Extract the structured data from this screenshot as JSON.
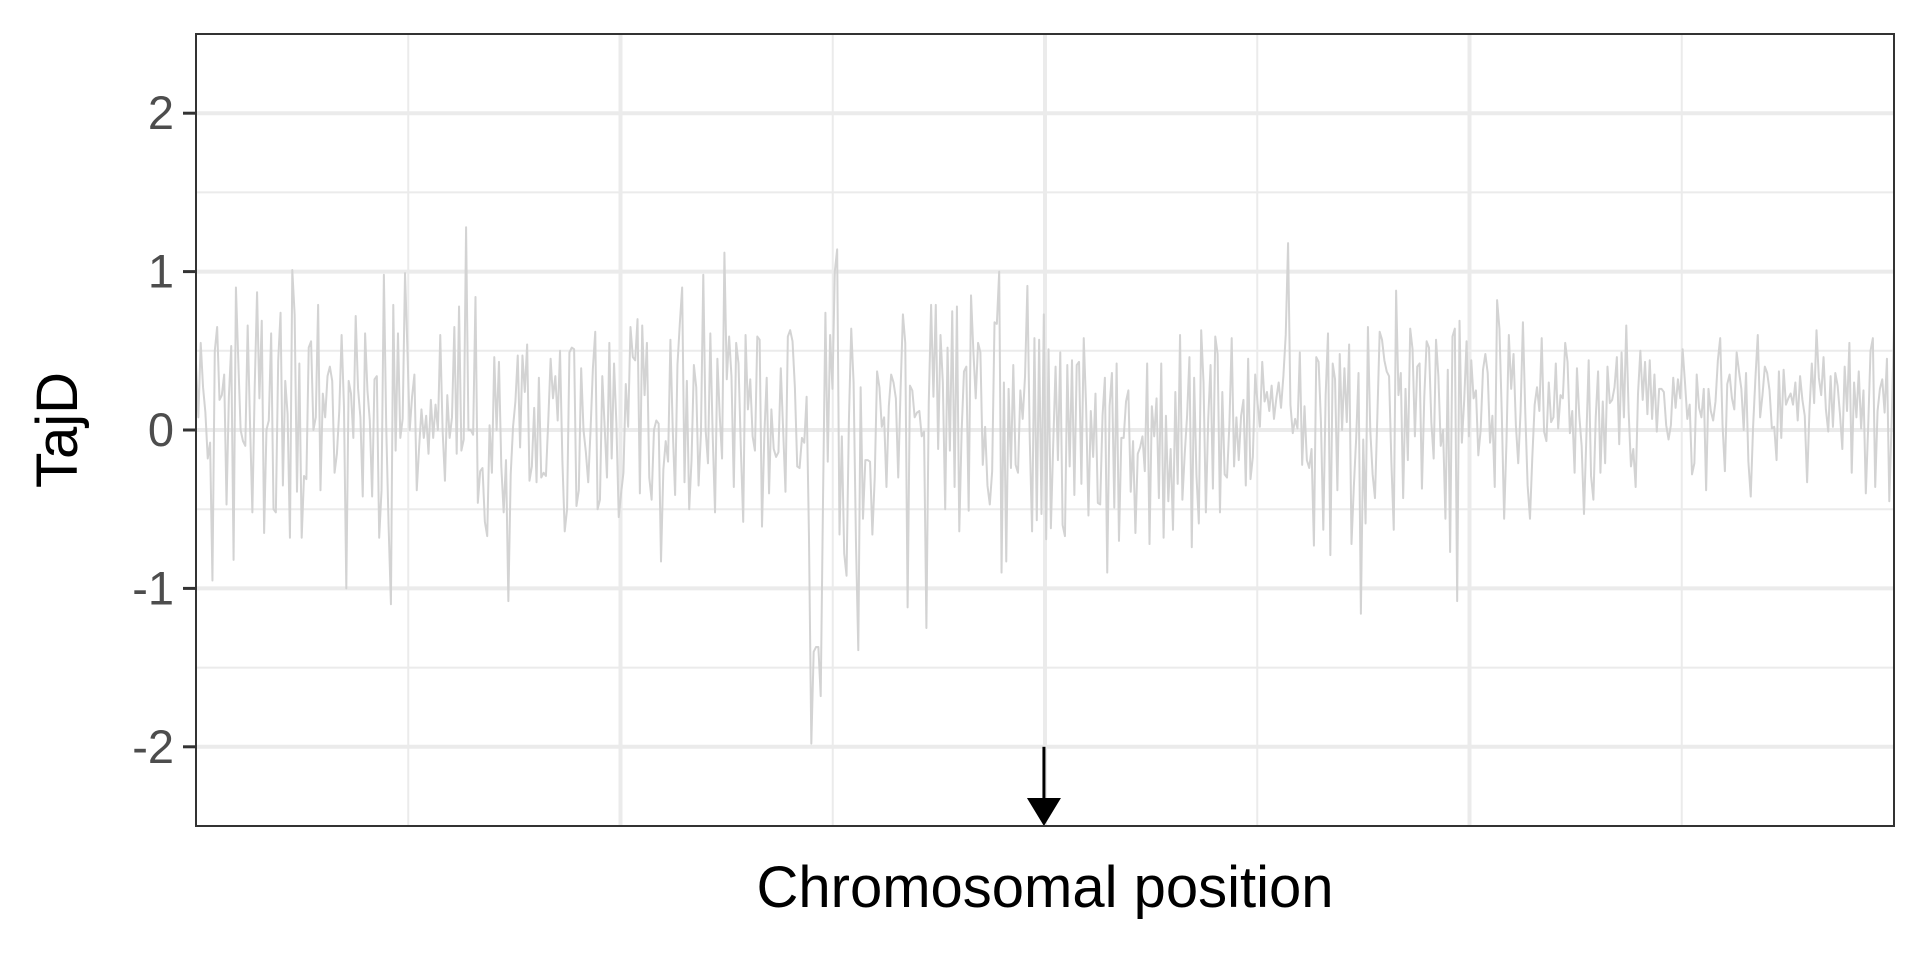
{
  "chart_data": {
    "type": "line",
    "title": "",
    "xlabel": "Chromosomal position",
    "ylabel": "TajD",
    "ylim": [
      -2.5,
      2.5
    ],
    "xlim": [
      1,
      800
    ],
    "yticks": [
      -2,
      -1,
      0,
      1,
      2
    ],
    "ytick_labels": [
      "-2",
      "-1",
      "0",
      "1",
      "2"
    ],
    "grid": true,
    "legend": "none",
    "series_color": "#d3d3d3",
    "background": "#ffffff",
    "grid_color": "#ebebeb",
    "panel_border_color": "#333333",
    "annotation": {
      "type": "arrow",
      "x": 400,
      "y_from": -2,
      "y_to": -2.5,
      "color": "#000000"
    },
    "series": [
      {
        "values": [
          0.42,
          0.08,
          0.55,
          0.27,
          0.11,
          -0.18,
          -0.08,
          -0.95,
          0.5,
          0.65,
          0.19,
          0.22,
          0.35,
          -0.47,
          0.21,
          0.53,
          -0.82,
          0.9,
          0.44,
          0.0,
          -0.07,
          -0.1,
          0.66,
          0.04,
          -0.52,
          0.27,
          0.87,
          0.2,
          0.69,
          -0.65,
          0.0,
          0.06,
          0.61,
          -0.5,
          -0.52,
          0.44,
          0.74,
          -0.35,
          0.31,
          0.1,
          -0.68,
          1.01,
          0.73,
          -0.39,
          0.42,
          -0.68,
          -0.29,
          -0.31,
          0.52,
          0.56,
          0.0,
          0.08,
          0.79,
          -0.38,
          0.23,
          0.08,
          0.34,
          0.4,
          0.31,
          -0.27,
          -0.15,
          0.12,
          0.6,
          0.15,
          -1.0,
          0.31,
          0.23,
          -0.05,
          0.72,
          0.26,
          0.08,
          -0.42,
          0.61,
          0.25,
          0.06,
          -0.42,
          0.32,
          0.34,
          -0.68,
          -0.38,
          0.98,
          0.02,
          -0.6,
          -1.1,
          0.79,
          -0.13,
          0.61,
          -0.05,
          0.07,
          0.99,
          0.52,
          0.0,
          0.21,
          0.35,
          -0.38,
          -0.11,
          0.13,
          -0.05,
          0.09,
          -0.15,
          0.19,
          -0.05,
          0.16,
          0.0,
          0.6,
          0.0,
          -0.32,
          0.22,
          -0.05,
          0.08,
          0.65,
          -0.15,
          0.78,
          -0.13,
          -0.06,
          1.28,
          0.0,
          0.0,
          -0.03,
          0.84,
          -0.46,
          -0.26,
          -0.24,
          -0.58,
          -0.67,
          0.03,
          -0.27,
          0.46,
          0.0,
          0.43,
          -0.23,
          -0.52,
          -0.19,
          -1.08,
          -0.28,
          0.02,
          0.18,
          0.47,
          -0.11,
          0.47,
          0.24,
          0.54,
          -0.32,
          -0.23,
          0.14,
          -0.33,
          0.33,
          -0.3,
          -0.27,
          -0.29,
          0.06,
          0.45,
          0.2,
          0.34,
          0.06,
          0.5,
          -0.19,
          -0.64,
          -0.5,
          0.49,
          0.52,
          0.51,
          -0.48,
          -0.38,
          0.39,
          0.0,
          -0.14,
          -0.33,
          0.0,
          0.39,
          0.62,
          -0.5,
          -0.44,
          0.34,
          0.02,
          -0.3,
          0.55,
          -0.18,
          0.42,
          0.04,
          -0.55,
          -0.4,
          -0.27,
          0.29,
          0.02,
          0.65,
          0.46,
          0.44,
          0.7,
          -0.4,
          0.66,
          0.22,
          0.55,
          -0.3,
          -0.44,
          0.0,
          0.06,
          0.04,
          -0.83,
          -0.25,
          -0.07,
          -0.2,
          0.57,
          0.0,
          -0.41,
          0.41,
          0.67,
          0.9,
          -0.33,
          0.31,
          -0.5,
          -0.19,
          0.41,
          0.27,
          -0.35,
          -0.02,
          0.98,
          0.0,
          -0.21,
          0.61,
          -0.03,
          -0.52,
          0.45,
          0.09,
          -0.18,
          1.12,
          0.32,
          0.59,
          0.34,
          -0.36,
          0.55,
          0.42,
          -0.12,
          -0.58,
          0.6,
          0.13,
          0.32,
          -0.04,
          -0.13,
          0.59,
          0.57,
          -0.61,
          -0.03,
          0.33,
          -0.4,
          0.13,
          -0.12,
          -0.17,
          -0.14,
          0.39,
          0.0,
          -0.39,
          0.59,
          0.63,
          0.56,
          0.27,
          -0.23,
          -0.24,
          -0.05,
          -0.08,
          0.21,
          -0.67,
          -1.98,
          -1.4,
          -1.37,
          -1.37,
          -1.68,
          -0.42,
          0.74,
          -0.2,
          0.6,
          0.26,
          1.0,
          1.14,
          -0.66,
          -0.04,
          -0.78,
          -0.92,
          0.06,
          0.64,
          0.3,
          -0.7,
          -1.39,
          0.27,
          -0.56,
          -0.19,
          -0.19,
          -0.2,
          -0.66,
          -0.3,
          0.37,
          0.27,
          0.02,
          0.08,
          -0.36,
          0.15,
          0.35,
          0.3,
          0.2,
          -0.3,
          0.25,
          0.73,
          0.55,
          -1.12,
          0.28,
          0.25,
          0.08,
          0.11,
          0.12,
          -0.04,
          -0.01,
          -1.25,
          0.17,
          0.79,
          0.21,
          0.79,
          -0.12,
          0.6,
          0.3,
          -0.5,
          0.52,
          -0.13,
          0.75,
          -0.36,
          0.78,
          -0.64,
          -0.01,
          0.37,
          0.4,
          -0.51,
          0.85,
          0.5,
          0.2,
          0.55,
          0.49,
          -0.22,
          0.02,
          -0.35,
          -0.47,
          -0.26,
          0.68,
          0.67,
          1.0,
          -0.9,
          0.3,
          -0.83,
          0.26,
          -0.24,
          0.41,
          -0.22,
          -0.27,
          0.25,
          0.07,
          0.34,
          0.91,
          -0.05,
          -0.64,
          0.58,
          -0.57,
          0.57,
          -0.53,
          0.73,
          -0.69,
          0.51,
          -0.62,
          -0.09,
          0.4,
          -0.19,
          0.49,
          -0.6,
          -0.67,
          0.41,
          -0.23,
          0.44,
          -0.41,
          0.41,
          0.43,
          -0.34,
          0.58,
          0.15,
          -0.54,
          0.12,
          -0.17,
          0.23,
          -0.46,
          -0.47,
          0.09,
          0.33,
          -0.9,
          0.15,
          0.36,
          -0.49,
          0.42,
          -0.7,
          -0.05,
          -0.05,
          0.18,
          0.25,
          -0.39,
          -0.07,
          -0.65,
          -0.15,
          -0.11,
          -0.04,
          -0.26,
          0.42,
          -0.72,
          0.15,
          -0.04,
          0.2,
          -0.43,
          0.42,
          -0.68,
          0.09,
          -0.45,
          -0.12,
          -0.63,
          0.24,
          -0.34,
          0.6,
          -0.44,
          -0.15,
          0.09,
          0.46,
          -0.74,
          0.33,
          -0.29,
          -0.59,
          0.63,
          0.3,
          -0.52,
          0.07,
          0.41,
          -0.37,
          0.59,
          0.48,
          -0.52,
          0.24,
          -0.28,
          -0.3,
          0.03,
          0.58,
          -0.23,
          0.08,
          -0.19,
          0.09,
          0.19,
          -0.35,
          0.45,
          -0.31,
          -0.17,
          0.35,
          0.17,
          0.02,
          0.43,
          0.18,
          0.24,
          0.12,
          0.28,
          0.07,
          0.2,
          0.3,
          0.14,
          0.34,
          0.6,
          1.18,
          0.16,
          -0.02,
          0.07,
          0.01,
          0.49,
          -0.22,
          0.15,
          -0.19,
          -0.24,
          -0.12,
          -0.73,
          0.46,
          0.43,
          0.05,
          -0.63,
          0.22,
          0.61,
          -0.79,
          0.42,
          0.32,
          -0.38,
          0.48,
          0.0,
          0.39,
          0.05,
          0.54,
          -0.72,
          -0.36,
          -0.05,
          0.36,
          -1.16,
          -0.06,
          -0.59,
          0.65,
          0.0,
          -0.28,
          -0.43,
          0.08,
          0.62,
          0.57,
          0.44,
          0.37,
          0.34,
          -0.21,
          -0.63,
          0.88,
          0.22,
          0.36,
          -0.43,
          0.26,
          -0.19,
          0.64,
          0.51,
          -0.04,
          0.4,
          0.42,
          -0.37,
          0.21,
          0.56,
          0.52,
          0.05,
          -0.18,
          0.57,
          0.34,
          -0.1,
          0.0,
          -0.56,
          0.38,
          -0.77,
          0.59,
          0.64,
          -1.08,
          0.69,
          -0.08,
          0.19,
          0.56,
          -0.04,
          0.44,
          0.2,
          0.25,
          -0.16,
          0.0,
          0.38,
          0.48,
          0.36,
          -0.08,
          0.09,
          -0.36,
          0.82,
          0.64,
          0.1,
          -0.56,
          -0.07,
          0.6,
          0.26,
          0.48,
          0.03,
          -0.21,
          0.12,
          0.68,
          0.11,
          -0.35,
          -0.56,
          -0.17,
          0.16,
          0.27,
          0.12,
          0.58,
          -0.01,
          -0.07,
          0.3,
          0.05,
          0.08,
          0.42,
          0.01,
          0.22,
          0.2,
          0.55,
          0.43,
          -0.02,
          0.12,
          -0.27,
          0.39,
          0.09,
          -0.1,
          -0.53,
          -0.05,
          0.44,
          -0.29,
          -0.44,
          0.08,
          0.37,
          -0.27,
          0.18,
          -0.21,
          0.4,
          0.17,
          0.19,
          0.27,
          0.46,
          -0.09,
          0.49,
          0.08,
          0.66,
          0.12,
          -0.23,
          -0.12,
          -0.36,
          0.23,
          0.5,
          0.19,
          0.43,
          0.1,
          0.44,
          0.07,
          0.35,
          -0.01,
          0.26,
          0.26,
          0.24,
          0.03,
          -0.06,
          0.03,
          0.33,
          0.14,
          0.32,
          0.2,
          0.51,
          0.3,
          0.07,
          0.16,
          -0.28,
          -0.21,
          0.35,
          0.14,
          0.08,
          0.26,
          -0.38,
          0.26,
          0.12,
          0.06,
          0.18,
          0.44,
          0.58,
          0.03,
          -0.26,
          0.29,
          0.35,
          0.2,
          0.13,
          0.49,
          0.37,
          0.26,
          0.0,
          0.36,
          -0.2,
          -0.42,
          0.02,
          0.33,
          0.6,
          0.08,
          0.22,
          0.4,
          0.36,
          0.25,
          0.01,
          0.02,
          -0.19,
          0.37,
          -0.05,
          0.38,
          0.16,
          0.2,
          0.23,
          0.16,
          0.3,
          0.06,
          0.34,
          0.19,
          0.09,
          -0.33,
          0.12,
          0.42,
          0.17,
          0.63,
          0.33,
          0.22,
          0.46,
          0.13,
          -0.01,
          0.34,
          0.02,
          0.36,
          0.28,
          0.1,
          -0.12,
          0.4,
          0.12,
          0.55,
          -0.27,
          0.3,
          0.08,
          0.37,
          0.01,
          0.25,
          -0.4,
          0.02,
          0.5,
          0.58,
          -0.36,
          0.12,
          0.26,
          0.32,
          0.11,
          0.45,
          -0.45,
          0.05,
          0.66
        ]
      }
    ]
  }
}
